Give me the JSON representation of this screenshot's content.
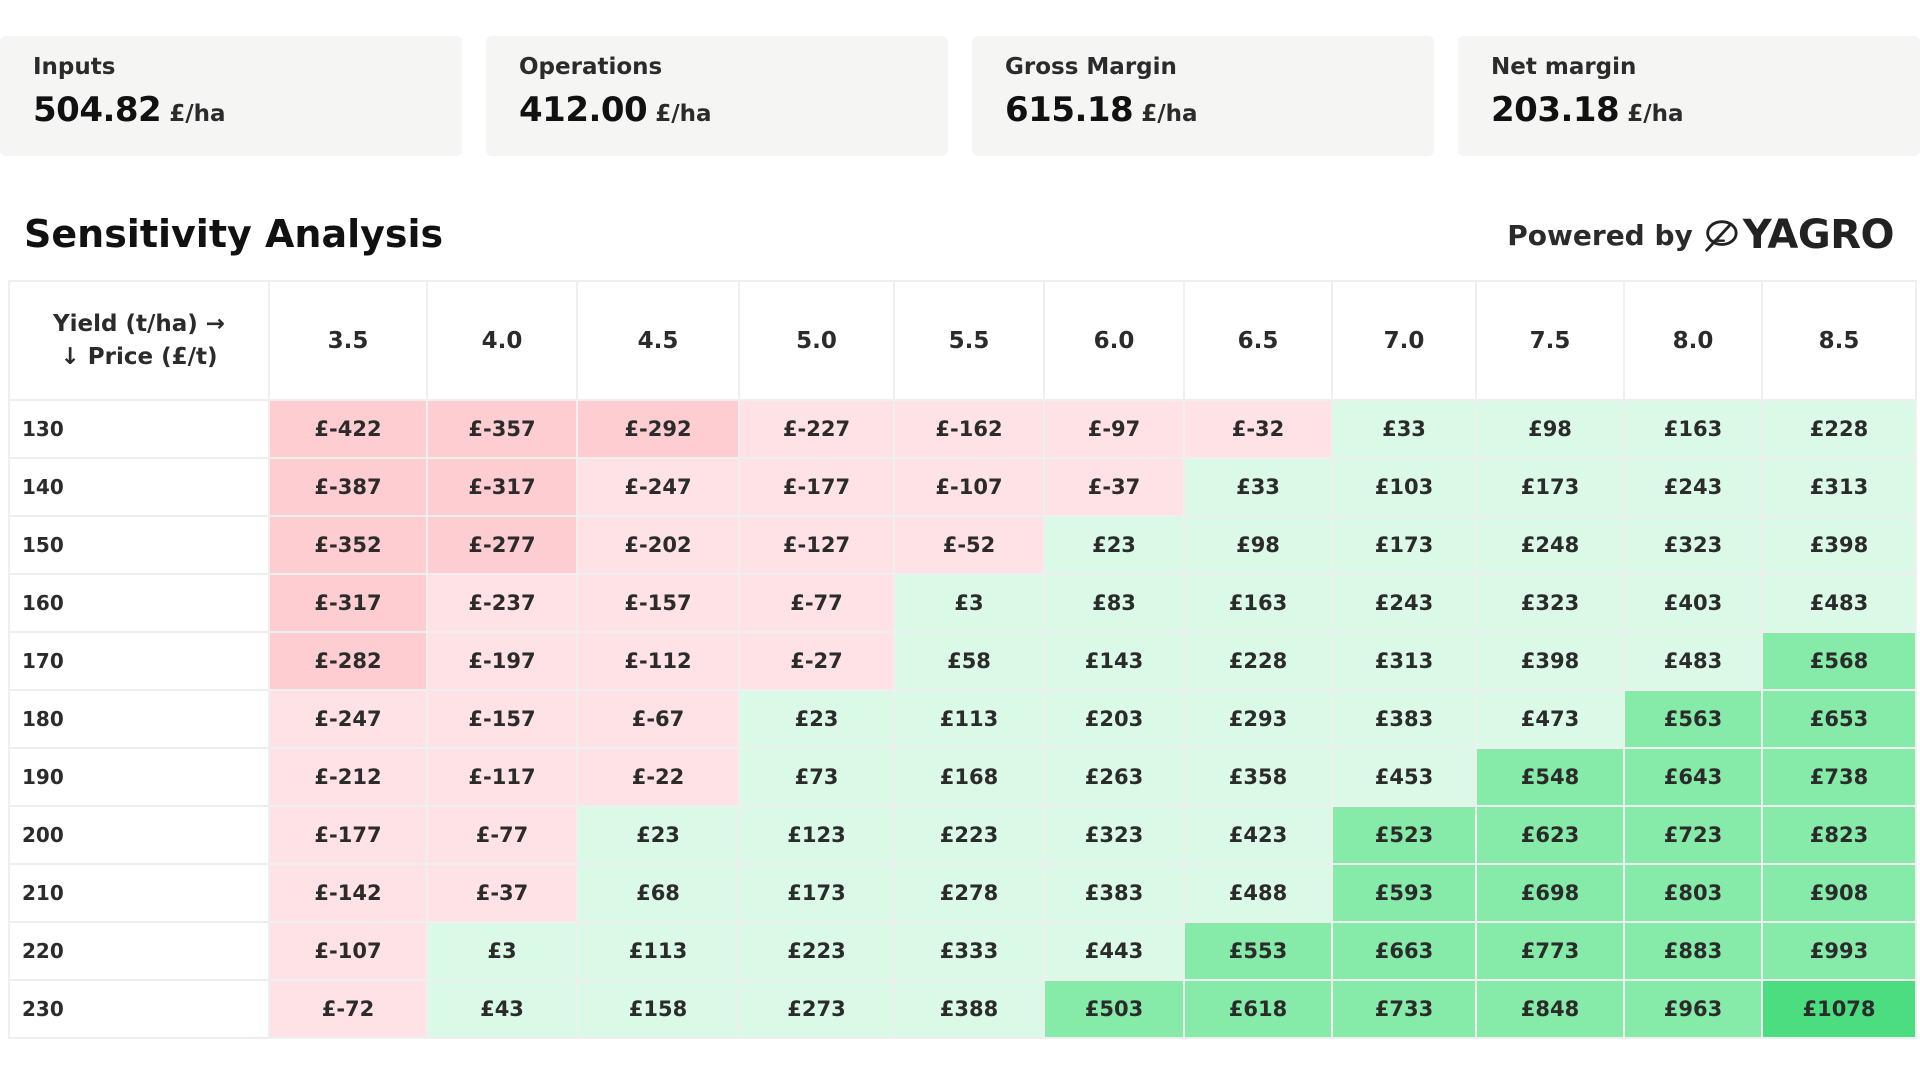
{
  "cards": [
    {
      "label": "Inputs",
      "value": "504.82",
      "unit": "£/ha"
    },
    {
      "label": "Operations",
      "value": "412.00",
      "unit": "£/ha"
    },
    {
      "label": "Gross Margin",
      "value": "615.18",
      "unit": "£/ha"
    },
    {
      "label": "Net margin",
      "value": "203.18",
      "unit": "£/ha"
    }
  ],
  "section_title": "Sensitivity Analysis",
  "powered_by": {
    "label": "Powered by",
    "brand": "YAGRO",
    "icon": "yagro-leaf-icon"
  },
  "table": {
    "corner_line1": "Yield (t/ha) →",
    "corner_line2": "↓ Price (£/t)",
    "yields": [
      "3.5",
      "4.0",
      "4.5",
      "5.0",
      "5.5",
      "6.0",
      "6.5",
      "7.0",
      "7.5",
      "8.0",
      "8.5"
    ],
    "colors": {
      "neg_strong": "#fdcdd2",
      "neg_light": "#fee2e5",
      "pos_light": "#dbf9e7",
      "pos_mid": "#86eaa8",
      "pos_strong": "#4bdd80"
    },
    "rows": [
      {
        "price": "130",
        "cells": [
          "£-422",
          "£-357",
          "£-292",
          "£-227",
          "£-162",
          "£-97",
          "£-32",
          "£33",
          "£98",
          "£163",
          "£228"
        ]
      },
      {
        "price": "140",
        "cells": [
          "£-387",
          "£-317",
          "£-247",
          "£-177",
          "£-107",
          "£-37",
          "£33",
          "£103",
          "£173",
          "£243",
          "£313"
        ]
      },
      {
        "price": "150",
        "cells": [
          "£-352",
          "£-277",
          "£-202",
          "£-127",
          "£-52",
          "£23",
          "£98",
          "£173",
          "£248",
          "£323",
          "£398"
        ]
      },
      {
        "price": "160",
        "cells": [
          "£-317",
          "£-237",
          "£-157",
          "£-77",
          "£3",
          "£83",
          "£163",
          "£243",
          "£323",
          "£403",
          "£483"
        ]
      },
      {
        "price": "170",
        "cells": [
          "£-282",
          "£-197",
          "£-112",
          "£-27",
          "£58",
          "£143",
          "£228",
          "£313",
          "£398",
          "£483",
          "£568"
        ]
      },
      {
        "price": "180",
        "cells": [
          "£-247",
          "£-157",
          "£-67",
          "£23",
          "£113",
          "£203",
          "£293",
          "£383",
          "£473",
          "£563",
          "£653"
        ]
      },
      {
        "price": "190",
        "cells": [
          "£-212",
          "£-117",
          "£-22",
          "£73",
          "£168",
          "£263",
          "£358",
          "£453",
          "£548",
          "£643",
          "£738"
        ]
      },
      {
        "price": "200",
        "cells": [
          "£-177",
          "£-77",
          "£23",
          "£123",
          "£223",
          "£323",
          "£423",
          "£523",
          "£623",
          "£723",
          "£823"
        ]
      },
      {
        "price": "210",
        "cells": [
          "£-142",
          "£-37",
          "£68",
          "£173",
          "£278",
          "£383",
          "£488",
          "£593",
          "£698",
          "£803",
          "£908"
        ]
      },
      {
        "price": "220",
        "cells": [
          "£-107",
          "£3",
          "£113",
          "£223",
          "£333",
          "£443",
          "£553",
          "£663",
          "£773",
          "£883",
          "£993"
        ]
      },
      {
        "price": "230",
        "cells": [
          "£-72",
          "£43",
          "£158",
          "£273",
          "£388",
          "£503",
          "£618",
          "£733",
          "£848",
          "£963",
          "£1078"
        ]
      }
    ]
  }
}
